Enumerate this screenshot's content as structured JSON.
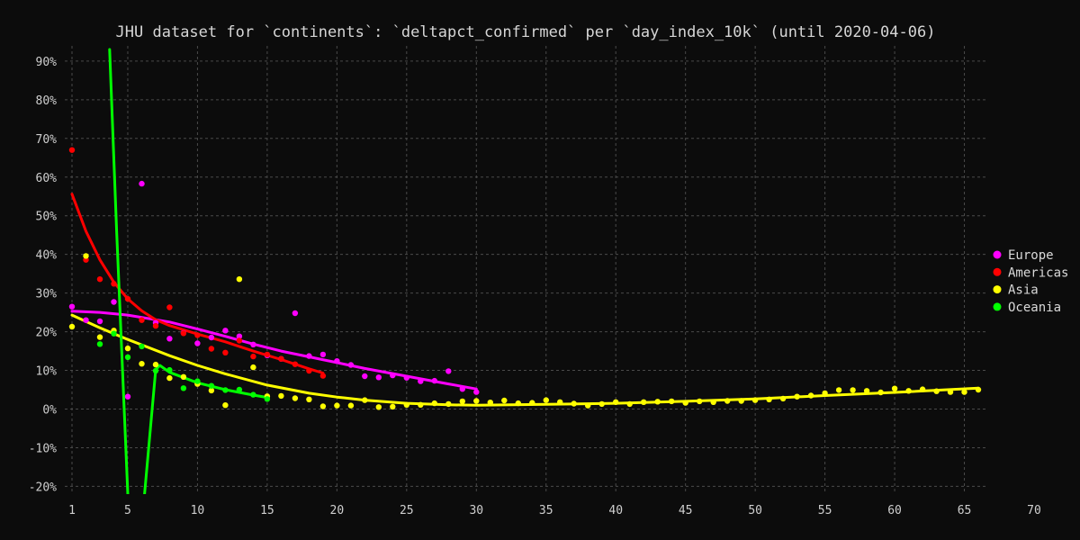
{
  "chart_data": {
    "type": "scatter",
    "title": "JHU dataset for `continents`: `deltapct_confirmed` per `day_index_10k` (until 2020-04-06)",
    "xlabel": "",
    "ylabel": "",
    "xlim": [
      1,
      70
    ],
    "ylim": [
      -22,
      93
    ],
    "x_ticks": [
      1,
      5,
      10,
      15,
      20,
      25,
      30,
      35,
      40,
      45,
      50,
      55,
      60,
      65,
      70
    ],
    "y_ticks": [
      -20,
      -10,
      0,
      10,
      20,
      30,
      40,
      50,
      60,
      70,
      80,
      90
    ],
    "y_tick_format": "percent",
    "grid": true,
    "legend_position": "right",
    "background": "#0c0c0c",
    "series": [
      {
        "name": "Europe",
        "color": "#ff00ff",
        "points": [
          [
            1,
            26.5
          ],
          [
            2,
            23
          ],
          [
            3,
            22.7
          ],
          [
            4,
            27.7
          ],
          [
            5,
            3.2
          ],
          [
            6,
            58.3
          ],
          [
            7,
            22.3
          ],
          [
            8,
            18.2
          ],
          [
            9,
            19.7
          ],
          [
            10,
            17
          ],
          [
            11,
            18.5
          ],
          [
            12,
            20.3
          ],
          [
            13,
            18.8
          ],
          [
            14,
            16.7
          ],
          [
            15,
            13.9
          ],
          [
            16,
            13
          ],
          [
            17,
            24.8
          ],
          [
            18,
            13.7
          ],
          [
            19,
            14.1
          ],
          [
            20,
            12.4
          ],
          [
            21,
            11.4
          ],
          [
            22,
            8.5
          ],
          [
            23,
            8.2
          ],
          [
            24,
            8.7
          ],
          [
            25,
            8.1
          ],
          [
            26,
            7.2
          ],
          [
            27,
            7.3
          ],
          [
            28,
            9.8
          ],
          [
            29,
            5.2
          ],
          [
            30,
            4.4
          ]
        ],
        "trend": [
          [
            1,
            25.3
          ],
          [
            3,
            25.0
          ],
          [
            5,
            24.3
          ],
          [
            8,
            22.5
          ],
          [
            10,
            20.7
          ],
          [
            12,
            18.8
          ],
          [
            14,
            16.8
          ],
          [
            16,
            15.0
          ],
          [
            18,
            13.5
          ],
          [
            20,
            12.0
          ],
          [
            22,
            10.5
          ],
          [
            25,
            8.5
          ],
          [
            28,
            6.5
          ],
          [
            30,
            5.2
          ]
        ]
      },
      {
        "name": "Americas",
        "color": "#ff0000",
        "points": [
          [
            1,
            67
          ],
          [
            2,
            38.6
          ],
          [
            3,
            33.6
          ],
          [
            4,
            32.4
          ],
          [
            5,
            28.5
          ],
          [
            6,
            23
          ],
          [
            7,
            21.5
          ],
          [
            8,
            26.3
          ],
          [
            9,
            19.6
          ],
          [
            10,
            19.1
          ],
          [
            11,
            15.6
          ],
          [
            12,
            14.6
          ],
          [
            13,
            17.7
          ],
          [
            14,
            13.6
          ],
          [
            15,
            14.1
          ],
          [
            16,
            13
          ],
          [
            17,
            11.6
          ],
          [
            18,
            9.9
          ],
          [
            19,
            8.6
          ]
        ],
        "trend": [
          [
            1,
            55.6
          ],
          [
            2,
            46
          ],
          [
            3,
            38.6
          ],
          [
            4,
            32.8
          ],
          [
            5,
            28.5
          ],
          [
            6,
            25.4
          ],
          [
            7,
            23.1
          ],
          [
            8,
            21.6
          ],
          [
            10,
            19.4
          ],
          [
            12,
            17.4
          ],
          [
            14,
            15.0
          ],
          [
            16,
            12.8
          ],
          [
            18,
            10.4
          ],
          [
            19,
            9.3
          ]
        ]
      },
      {
        "name": "Asia",
        "color": "#ffff00",
        "points": [
          [
            1,
            21.3
          ],
          [
            2,
            39.6
          ],
          [
            3,
            18.6
          ],
          [
            4,
            20.3
          ],
          [
            5,
            15.7
          ],
          [
            6,
            11.7
          ],
          [
            7,
            11.5
          ],
          [
            8,
            8
          ],
          [
            9,
            8.3
          ],
          [
            10,
            6.5
          ],
          [
            11,
            4.8
          ],
          [
            12,
            1
          ],
          [
            13,
            33.6
          ],
          [
            14,
            10.8
          ],
          [
            15,
            3.3
          ],
          [
            16,
            3.4
          ],
          [
            17,
            2.8
          ],
          [
            18,
            2.5
          ],
          [
            19,
            0.7
          ],
          [
            20,
            0.9
          ],
          [
            21,
            0.9
          ],
          [
            22,
            2.3
          ],
          [
            23,
            0.5
          ],
          [
            24,
            0.6
          ],
          [
            25,
            1.1
          ],
          [
            26,
            1.1
          ],
          [
            27,
            1.5
          ],
          [
            28,
            1.3
          ],
          [
            29,
            2
          ],
          [
            30,
            2.1
          ],
          [
            31,
            1.7
          ],
          [
            32,
            2.2
          ],
          [
            33,
            1.5
          ],
          [
            34,
            1.6
          ],
          [
            35,
            2.3
          ],
          [
            36,
            1.8
          ],
          [
            37,
            1.4
          ],
          [
            38,
            0.9
          ],
          [
            39,
            1.3
          ],
          [
            40,
            1.8
          ],
          [
            41,
            1.3
          ],
          [
            42,
            1.8
          ],
          [
            43,
            1.9
          ],
          [
            44,
            2
          ],
          [
            45,
            1.6
          ],
          [
            46,
            2
          ],
          [
            47,
            1.8
          ],
          [
            48,
            2.1
          ],
          [
            49,
            2.1
          ],
          [
            50,
            2.3
          ],
          [
            51,
            2.5
          ],
          [
            52,
            2.7
          ],
          [
            53,
            3.2
          ],
          [
            54,
            3.5
          ],
          [
            55,
            4.1
          ],
          [
            56,
            4.9
          ],
          [
            57,
            4.9
          ],
          [
            58,
            4.7
          ],
          [
            59,
            4.3
          ],
          [
            60,
            5.3
          ],
          [
            61,
            4.7
          ],
          [
            62,
            5.1
          ],
          [
            63,
            4.6
          ],
          [
            64,
            4.4
          ],
          [
            65,
            4.4
          ],
          [
            66,
            5
          ]
        ],
        "trend": [
          [
            1,
            24.3
          ],
          [
            3,
            21
          ],
          [
            5,
            18
          ],
          [
            8,
            13.8
          ],
          [
            10,
            11.3
          ],
          [
            12,
            9.1
          ],
          [
            15,
            6.2
          ],
          [
            18,
            4.1
          ],
          [
            20,
            3.1
          ],
          [
            22,
            2.3
          ],
          [
            25,
            1.5
          ],
          [
            28,
            1.1
          ],
          [
            30,
            1.0
          ],
          [
            35,
            1.2
          ],
          [
            40,
            1.5
          ],
          [
            45,
            2.0
          ],
          [
            50,
            2.6
          ],
          [
            55,
            3.5
          ],
          [
            60,
            4.3
          ],
          [
            66,
            5.4
          ]
        ]
      },
      {
        "name": "Oceania",
        "color": "#00ff00",
        "points": [
          [
            3,
            16.8
          ],
          [
            4,
            19.5
          ],
          [
            5,
            13.4
          ],
          [
            6,
            16.2
          ],
          [
            7,
            9.9
          ],
          [
            8,
            10.1
          ],
          [
            9,
            5.4
          ],
          [
            10,
            7.2
          ],
          [
            11,
            6
          ],
          [
            12,
            4.9
          ],
          [
            13,
            5
          ],
          [
            14,
            3.7
          ],
          [
            15,
            2.6
          ]
        ],
        "trend": [
          [
            3.7,
            93
          ],
          [
            4.2,
            46
          ],
          [
            5,
            -22
          ]
        ],
        "trend2": [
          [
            6.2,
            -22
          ],
          [
            7,
            10.2
          ],
          [
            7.3,
            11.3
          ],
          [
            8,
            9.5
          ],
          [
            10,
            6.8
          ],
          [
            12,
            5.0
          ],
          [
            14,
            3.6
          ],
          [
            15,
            3.0
          ]
        ]
      }
    ]
  }
}
